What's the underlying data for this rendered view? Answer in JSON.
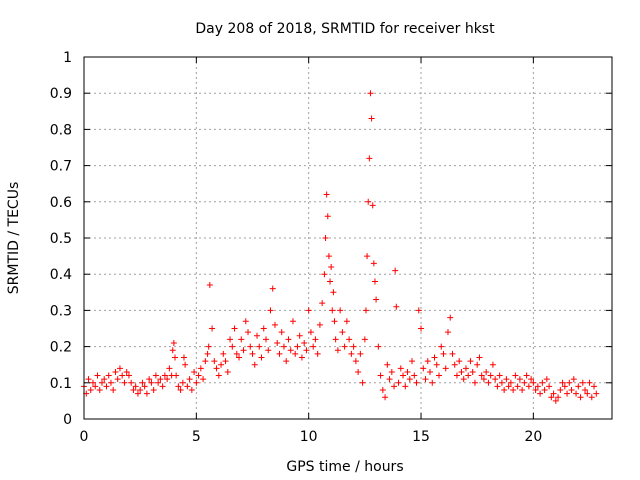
{
  "chart_data": {
    "type": "scatter",
    "title": "Day 208 of 2018, SRMTID for receiver hkst",
    "xlabel": "GPS time / hours",
    "ylabel": "SRMTID / TECUs",
    "xlim": [
      0,
      23.5
    ],
    "ylim": [
      0,
      1
    ],
    "x_ticks": [
      0,
      5,
      10,
      15,
      20
    ],
    "x_tick_labels": [
      "0",
      "5",
      "10",
      "15",
      "20"
    ],
    "y_ticks": [
      0,
      0.1,
      0.2,
      0.3,
      0.4,
      0.5,
      0.6,
      0.7,
      0.8,
      0.9,
      1
    ],
    "y_tick_labels": [
      "0",
      "0.1",
      "0.2",
      "0.3",
      "0.4",
      "0.5",
      "0.6",
      "0.7",
      "0.8",
      "0.9",
      "1"
    ],
    "grid": true,
    "marker": "+",
    "series": [
      {
        "name": "SRMTID",
        "color": "#ff0000",
        "x": [
          0.0,
          0.1,
          0.2,
          0.3,
          0.4,
          0.5,
          0.6,
          0.7,
          0.8,
          0.9,
          1.0,
          1.1,
          1.2,
          1.3,
          1.4,
          1.5,
          1.6,
          1.7,
          1.8,
          1.9,
          2.0,
          2.1,
          2.2,
          2.3,
          2.4,
          2.5,
          2.6,
          2.7,
          2.8,
          2.9,
          3.0,
          3.1,
          3.2,
          3.3,
          3.4,
          3.5,
          3.6,
          3.7,
          3.8,
          3.9,
          3.95,
          4.0,
          4.05,
          4.1,
          4.2,
          4.3,
          4.4,
          4.45,
          4.5,
          4.6,
          4.7,
          4.8,
          4.9,
          5.0,
          5.1,
          5.2,
          5.3,
          5.4,
          5.5,
          5.55,
          5.6,
          5.7,
          5.8,
          5.9,
          6.0,
          6.1,
          6.2,
          6.3,
          6.4,
          6.5,
          6.6,
          6.7,
          6.8,
          6.9,
          7.0,
          7.1,
          7.2,
          7.3,
          7.4,
          7.5,
          7.6,
          7.7,
          7.8,
          7.9,
          8.0,
          8.1,
          8.2,
          8.3,
          8.4,
          8.5,
          8.6,
          8.7,
          8.8,
          8.9,
          9.0,
          9.1,
          9.2,
          9.3,
          9.4,
          9.5,
          9.6,
          9.7,
          9.8,
          9.9,
          10.0,
          10.1,
          10.2,
          10.3,
          10.4,
          10.5,
          10.6,
          10.7,
          10.75,
          10.8,
          10.85,
          10.9,
          10.95,
          11.0,
          11.05,
          11.1,
          11.15,
          11.2,
          11.3,
          11.4,
          11.5,
          11.6,
          11.7,
          11.8,
          11.9,
          12.0,
          12.1,
          12.2,
          12.3,
          12.4,
          12.5,
          12.55,
          12.6,
          12.65,
          12.7,
          12.75,
          12.8,
          12.85,
          12.9,
          12.95,
          13.0,
          13.1,
          13.2,
          13.3,
          13.4,
          13.5,
          13.6,
          13.7,
          13.8,
          13.85,
          13.9,
          14.0,
          14.1,
          14.2,
          14.3,
          14.4,
          14.5,
          14.6,
          14.7,
          14.8,
          14.9,
          15.0,
          15.1,
          15.2,
          15.3,
          15.4,
          15.5,
          15.6,
          15.7,
          15.8,
          15.9,
          16.0,
          16.1,
          16.2,
          16.3,
          16.4,
          16.5,
          16.6,
          16.7,
          16.8,
          16.9,
          17.0,
          17.1,
          17.2,
          17.3,
          17.4,
          17.5,
          17.6,
          17.7,
          17.8,
          17.9,
          18.0,
          18.1,
          18.2,
          18.3,
          18.4,
          18.5,
          18.6,
          18.7,
          18.8,
          18.9,
          19.0,
          19.1,
          19.2,
          19.3,
          19.4,
          19.5,
          19.6,
          19.7,
          19.8,
          19.9,
          20.0,
          20.1,
          20.2,
          20.3,
          20.4,
          20.5,
          20.6,
          20.7,
          20.8,
          20.9,
          21.0,
          21.1,
          21.2,
          21.3,
          21.4,
          21.5,
          21.6,
          21.7,
          21.8,
          21.9,
          22.0,
          22.1,
          22.2,
          22.3,
          22.4,
          22.5,
          22.6,
          22.7,
          22.8
        ],
        "y": [
          0.09,
          0.07,
          0.11,
          0.08,
          0.1,
          0.09,
          0.12,
          0.08,
          0.1,
          0.11,
          0.09,
          0.12,
          0.1,
          0.08,
          0.13,
          0.11,
          0.14,
          0.12,
          0.1,
          0.13,
          0.12,
          0.1,
          0.08,
          0.09,
          0.07,
          0.08,
          0.1,
          0.09,
          0.07,
          0.11,
          0.1,
          0.08,
          0.12,
          0.1,
          0.11,
          0.09,
          0.12,
          0.11,
          0.14,
          0.12,
          0.19,
          0.21,
          0.17,
          0.12,
          0.09,
          0.08,
          0.1,
          0.17,
          0.15,
          0.09,
          0.11,
          0.08,
          0.13,
          0.1,
          0.12,
          0.14,
          0.11,
          0.16,
          0.18,
          0.2,
          0.37,
          0.25,
          0.16,
          0.14,
          0.12,
          0.15,
          0.18,
          0.16,
          0.13,
          0.22,
          0.2,
          0.25,
          0.18,
          0.17,
          0.22,
          0.19,
          0.27,
          0.24,
          0.2,
          0.18,
          0.15,
          0.23,
          0.2,
          0.17,
          0.25,
          0.22,
          0.19,
          0.3,
          0.36,
          0.26,
          0.21,
          0.18,
          0.24,
          0.2,
          0.16,
          0.22,
          0.19,
          0.27,
          0.18,
          0.2,
          0.23,
          0.17,
          0.21,
          0.19,
          0.3,
          0.24,
          0.2,
          0.22,
          0.18,
          0.26,
          0.32,
          0.4,
          0.5,
          0.62,
          0.56,
          0.45,
          0.38,
          0.42,
          0.3,
          0.35,
          0.27,
          0.22,
          0.19,
          0.3,
          0.24,
          0.2,
          0.27,
          0.22,
          0.18,
          0.2,
          0.16,
          0.13,
          0.18,
          0.1,
          0.22,
          0.3,
          0.45,
          0.6,
          0.72,
          0.9,
          0.83,
          0.59,
          0.43,
          0.38,
          0.33,
          0.2,
          0.12,
          0.08,
          0.06,
          0.15,
          0.11,
          0.13,
          0.09,
          0.41,
          0.31,
          0.1,
          0.14,
          0.12,
          0.09,
          0.13,
          0.11,
          0.16,
          0.12,
          0.1,
          0.3,
          0.25,
          0.14,
          0.11,
          0.16,
          0.13,
          0.1,
          0.17,
          0.15,
          0.12,
          0.2,
          0.18,
          0.14,
          0.24,
          0.28,
          0.18,
          0.15,
          0.12,
          0.16,
          0.13,
          0.11,
          0.14,
          0.12,
          0.16,
          0.13,
          0.1,
          0.15,
          0.17,
          0.12,
          0.11,
          0.13,
          0.1,
          0.12,
          0.15,
          0.11,
          0.09,
          0.12,
          0.1,
          0.08,
          0.11,
          0.09,
          0.1,
          0.08,
          0.12,
          0.09,
          0.11,
          0.08,
          0.1,
          0.12,
          0.09,
          0.11,
          0.1,
          0.08,
          0.09,
          0.07,
          0.1,
          0.08,
          0.11,
          0.09,
          0.06,
          0.07,
          0.05,
          0.06,
          0.08,
          0.1,
          0.09,
          0.07,
          0.1,
          0.08,
          0.11,
          0.07,
          0.09,
          0.06,
          0.1,
          0.08,
          0.07,
          0.1,
          0.06,
          0.09,
          0.07
        ]
      }
    ]
  }
}
